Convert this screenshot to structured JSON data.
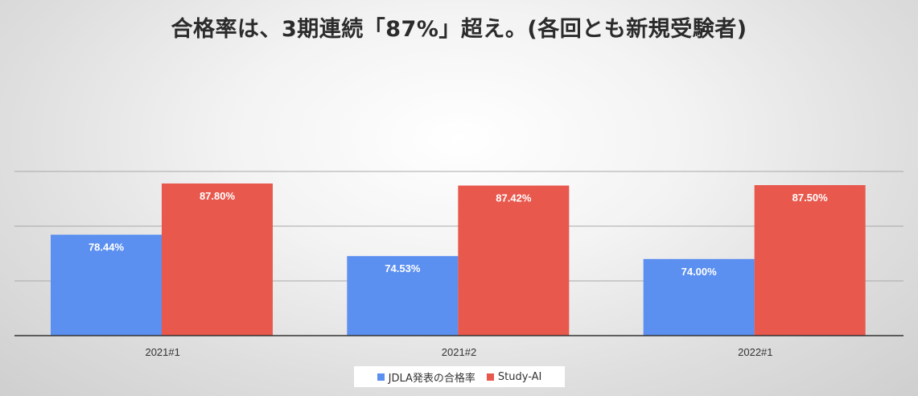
{
  "chart_data": {
    "type": "bar",
    "title": "合格率は、3期連続「87%」超え。(各回とも新規受験者)",
    "categories": [
      "2021#1",
      "2021#2",
      "2022#1"
    ],
    "series": [
      {
        "name": "JDLA発表の合格率",
        "color": "#5b8ff0",
        "values": [
          78.44,
          74.53,
          74.0
        ],
        "labels": [
          "78.44%",
          "74.53%",
          "74.00%"
        ]
      },
      {
        "name": "Study-AI",
        "color": "#e8584d",
        "values": [
          87.8,
          87.42,
          87.5
        ],
        "labels": [
          "87.80%",
          "87.42%",
          "87.50%"
        ]
      }
    ],
    "ylim": [
      60,
      90
    ],
    "grid": true,
    "legend_position": "bottom"
  }
}
